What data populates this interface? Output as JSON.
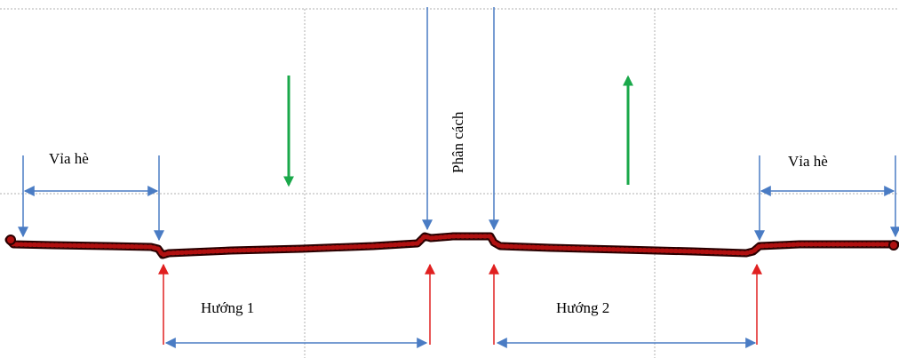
{
  "labels": {
    "sidewalk_left": "Vỉa hè",
    "sidewalk_right": "Vỉa hè",
    "separator": "Phân cách",
    "direction_1": "Hướng 1",
    "direction_2": "Hướng 2"
  },
  "colors": {
    "grid": "#b0b0b0",
    "blue_arrows": "#4a7cc4",
    "red_arrows": "#e02020",
    "green_arrows": "#1aa84a",
    "profile_fill": "#b01010",
    "profile_outline": "#2a0000"
  },
  "direction_arrows": [
    {
      "name": "direction-1-flow",
      "pointing": "down"
    },
    {
      "name": "direction-2-flow",
      "pointing": "up"
    }
  ]
}
